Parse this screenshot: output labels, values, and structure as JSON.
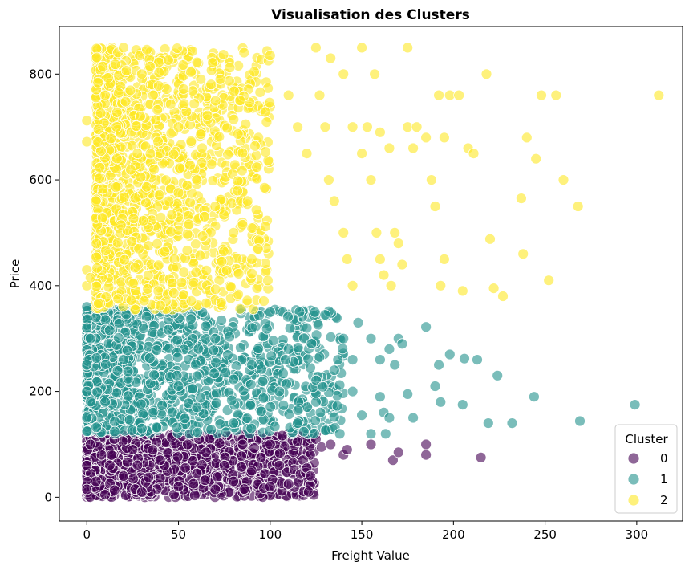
{
  "chart_data": {
    "type": "scatter",
    "title": "Visualisation des Clusters",
    "xlabel": "Freight Value",
    "ylabel": "Price",
    "xlim": [
      -15,
      325
    ],
    "ylim": [
      -45,
      890
    ],
    "xticks": [
      0,
      50,
      100,
      150,
      200,
      250,
      300
    ],
    "yticks": [
      0,
      200,
      400,
      600,
      800
    ],
    "grid": false,
    "legend": {
      "title": "Cluster",
      "placement": "bottom-right"
    },
    "marker_alpha": 0.6,
    "series": [
      {
        "name": "0",
        "color": "#440154",
        "dense_region": {
          "x": [
            0,
            125
          ],
          "y": [
            0,
            120
          ]
        },
        "points": [
          [
            0,
            15
          ],
          [
            0,
            60
          ],
          [
            2,
            100
          ],
          [
            5,
            30
          ],
          [
            8,
            80
          ],
          [
            10,
            5
          ],
          [
            15,
            110
          ],
          [
            20,
            40
          ],
          [
            25,
            90
          ],
          [
            30,
            10
          ],
          [
            40,
            70
          ],
          [
            50,
            20
          ],
          [
            55,
            100
          ],
          [
            60,
            45
          ],
          [
            65,
            85
          ],
          [
            70,
            15
          ],
          [
            75,
            60
          ],
          [
            80,
            30
          ],
          [
            85,
            100
          ],
          [
            90,
            50
          ],
          [
            95,
            75
          ],
          [
            100,
            20
          ],
          [
            100,
            100
          ],
          [
            105,
            60
          ],
          [
            110,
            25
          ],
          [
            115,
            105
          ],
          [
            118,
            70
          ],
          [
            120,
            55
          ],
          [
            121,
            10
          ],
          [
            122,
            40
          ],
          [
            125,
            110
          ],
          [
            128,
            95
          ],
          [
            133,
            100
          ],
          [
            140,
            80
          ],
          [
            142,
            90
          ],
          [
            155,
            100
          ],
          [
            167,
            70
          ],
          [
            170,
            85
          ],
          [
            185,
            100
          ],
          [
            185,
            80
          ],
          [
            215,
            75
          ]
        ]
      },
      {
        "name": "1",
        "color": "#21918c",
        "dense_region": {
          "x": [
            0,
            140
          ],
          "y": [
            120,
            355
          ]
        },
        "points": [
          [
            0,
            360
          ],
          [
            0,
            320
          ],
          [
            0,
            250
          ],
          [
            0,
            200
          ],
          [
            0,
            150
          ],
          [
            2,
            300
          ],
          [
            5,
            340
          ],
          [
            10,
            180
          ],
          [
            20,
            260
          ],
          [
            30,
            130
          ],
          [
            40,
            350
          ],
          [
            50,
            210
          ],
          [
            60,
            170
          ],
          [
            70,
            300
          ],
          [
            80,
            140
          ],
          [
            90,
            250
          ],
          [
            100,
            350
          ],
          [
            105,
            200
          ],
          [
            110,
            280
          ],
          [
            115,
            140
          ],
          [
            120,
            320
          ],
          [
            125,
            180
          ],
          [
            130,
            345
          ],
          [
            135,
            240
          ],
          [
            138,
            120
          ],
          [
            140,
            300
          ],
          [
            145,
            260
          ],
          [
            145,
            200
          ],
          [
            148,
            330
          ],
          [
            150,
            155
          ],
          [
            155,
            120
          ],
          [
            155,
            300
          ],
          [
            160,
            260
          ],
          [
            160,
            190
          ],
          [
            162,
            160
          ],
          [
            163,
            120
          ],
          [
            165,
            150
          ],
          [
            165,
            280
          ],
          [
            168,
            250
          ],
          [
            170,
            300
          ],
          [
            172,
            290
          ],
          [
            175,
            195
          ],
          [
            178,
            150
          ],
          [
            185,
            322
          ],
          [
            190,
            210
          ],
          [
            192,
            250
          ],
          [
            193,
            180
          ],
          [
            198,
            270
          ],
          [
            205,
            175
          ],
          [
            206,
            262
          ],
          [
            213,
            260
          ],
          [
            219,
            140
          ],
          [
            224,
            230
          ],
          [
            232,
            140
          ],
          [
            244,
            190
          ],
          [
            269,
            144
          ],
          [
            299,
            175
          ]
        ]
      },
      {
        "name": "2",
        "color": "#fde725",
        "dense_region": {
          "x": [
            5,
            100
          ],
          "y": [
            355,
            850
          ]
        },
        "points": [
          [
            0,
            712
          ],
          [
            0,
            672
          ],
          [
            0,
            430
          ],
          [
            0,
            400
          ],
          [
            2,
            415
          ],
          [
            5,
            560
          ],
          [
            10,
            760
          ],
          [
            20,
            850
          ],
          [
            30,
            800
          ],
          [
            40,
            650
          ],
          [
            50,
            700
          ],
          [
            60,
            600
          ],
          [
            70,
            550
          ],
          [
            80,
            500
          ],
          [
            90,
            450
          ],
          [
            100,
            835
          ],
          [
            110,
            760
          ],
          [
            115,
            700
          ],
          [
            120,
            650
          ],
          [
            125,
            850
          ],
          [
            127,
            760
          ],
          [
            130,
            700
          ],
          [
            132,
            600
          ],
          [
            133,
            830
          ],
          [
            135,
            560
          ],
          [
            140,
            800
          ],
          [
            140,
            500
          ],
          [
            142,
            450
          ],
          [
            145,
            700
          ],
          [
            145,
            400
          ],
          [
            150,
            850
          ],
          [
            150,
            650
          ],
          [
            153,
            700
          ],
          [
            155,
            600
          ],
          [
            157,
            800
          ],
          [
            158,
            500
          ],
          [
            160,
            690
          ],
          [
            160,
            450
          ],
          [
            162,
            420
          ],
          [
            165,
            660
          ],
          [
            166,
            400
          ],
          [
            168,
            500
          ],
          [
            170,
            480
          ],
          [
            172,
            440
          ],
          [
            175,
            850
          ],
          [
            175,
            700
          ],
          [
            178,
            660
          ],
          [
            180,
            700
          ],
          [
            185,
            680
          ],
          [
            188,
            600
          ],
          [
            190,
            550
          ],
          [
            192,
            760
          ],
          [
            193,
            400
          ],
          [
            195,
            450
          ],
          [
            195,
            680
          ],
          [
            198,
            760
          ],
          [
            203,
            760
          ],
          [
            205,
            390
          ],
          [
            208,
            660
          ],
          [
            211,
            650
          ],
          [
            218,
            800
          ],
          [
            220,
            488
          ],
          [
            222,
            395
          ],
          [
            227,
            380
          ],
          [
            237,
            565
          ],
          [
            238,
            460
          ],
          [
            240,
            680
          ],
          [
            245,
            640
          ],
          [
            248,
            760
          ],
          [
            252,
            410
          ],
          [
            256,
            760
          ],
          [
            260,
            600
          ],
          [
            268,
            550
          ],
          [
            312,
            760
          ]
        ]
      }
    ]
  }
}
